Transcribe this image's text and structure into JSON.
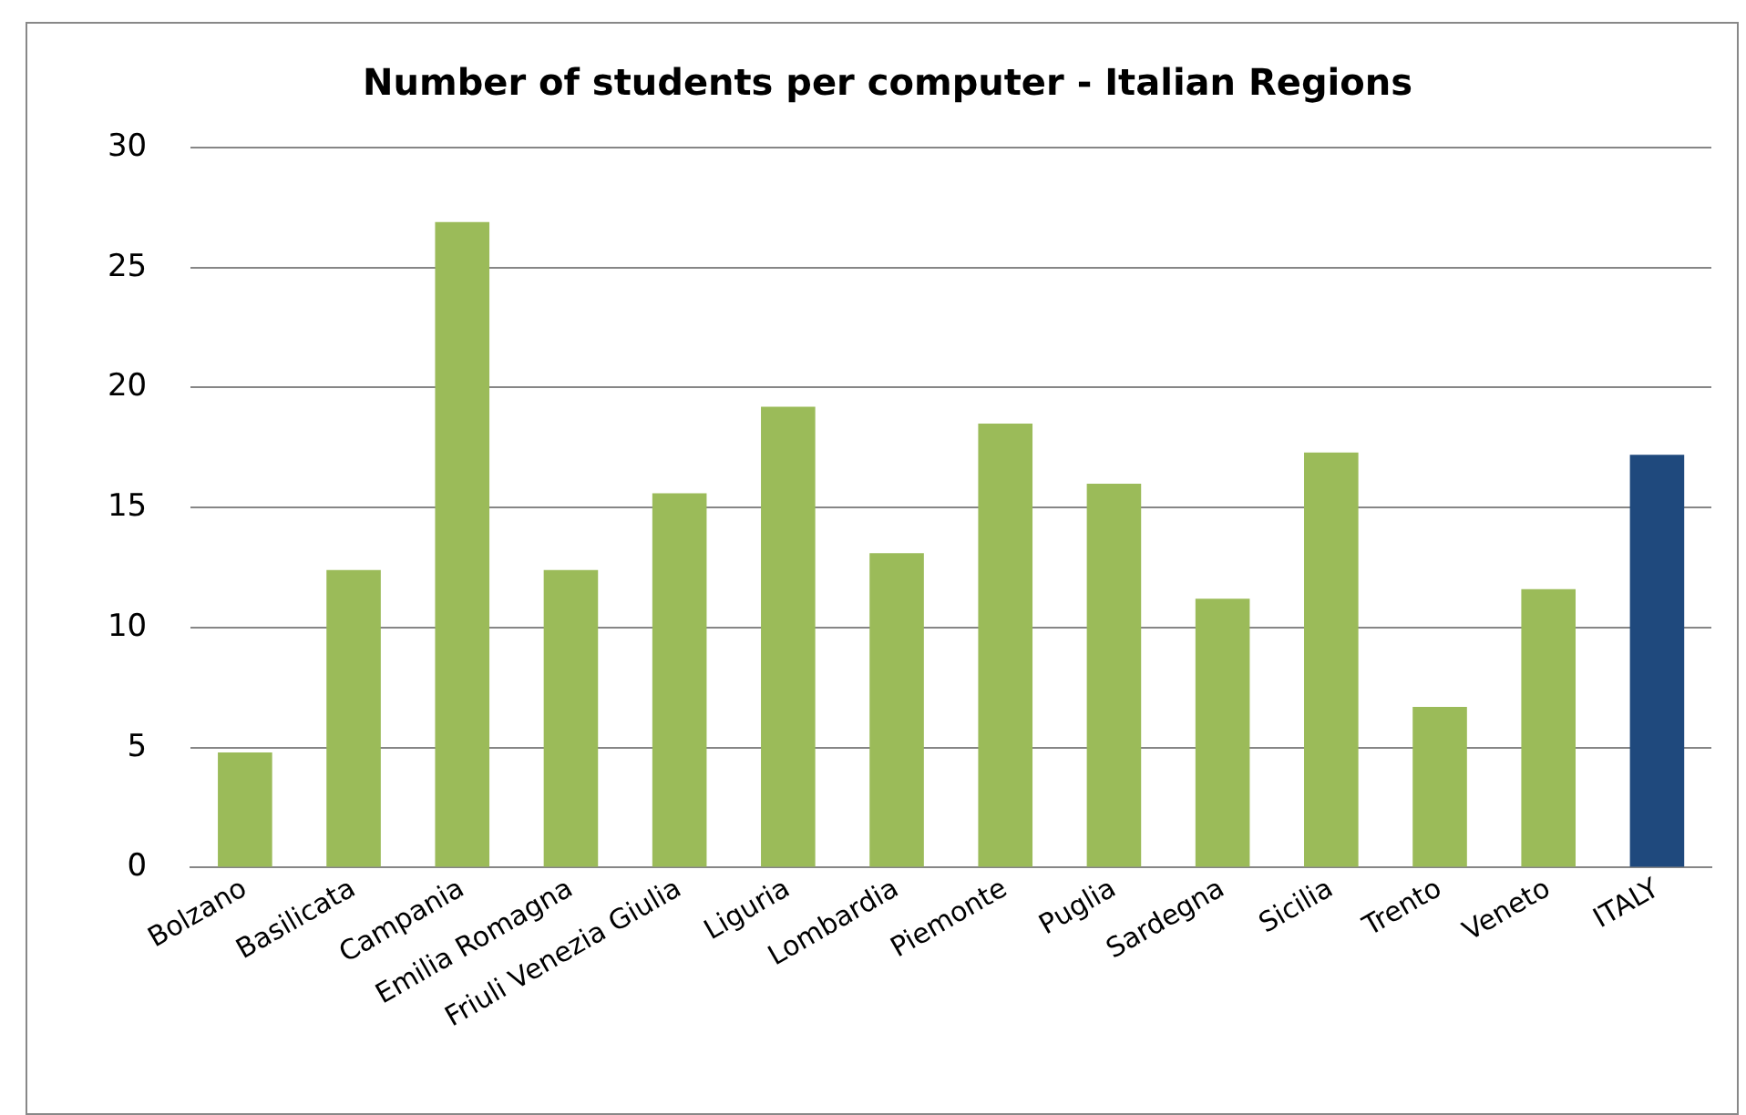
{
  "chart_data": {
    "type": "bar",
    "title": "Number of students per computer - Italian Regions",
    "categories": [
      "Bolzano",
      "Basilicata",
      "Campania",
      "Emilia Romagna",
      "Friuli Venezia Giulia",
      "Liguria",
      "Lombardia",
      "Piemonte",
      "Puglia",
      "Sardegna",
      "Sicilia",
      "Trento",
      "Veneto",
      "ITALY"
    ],
    "values": [
      4.8,
      12.4,
      26.9,
      12.4,
      15.6,
      19.2,
      13.1,
      18.5,
      16.0,
      11.2,
      17.3,
      6.7,
      11.6,
      17.2
    ],
    "colors": [
      "#9bbb59",
      "#9bbb59",
      "#9bbb59",
      "#9bbb59",
      "#9bbb59",
      "#9bbb59",
      "#9bbb59",
      "#9bbb59",
      "#9bbb59",
      "#9bbb59",
      "#9bbb59",
      "#9bbb59",
      "#9bbb59",
      "#1f497d"
    ],
    "ylim": [
      0,
      30
    ],
    "yticks": [
      0,
      5,
      10,
      15,
      20,
      25,
      30
    ],
    "grid": "y"
  }
}
